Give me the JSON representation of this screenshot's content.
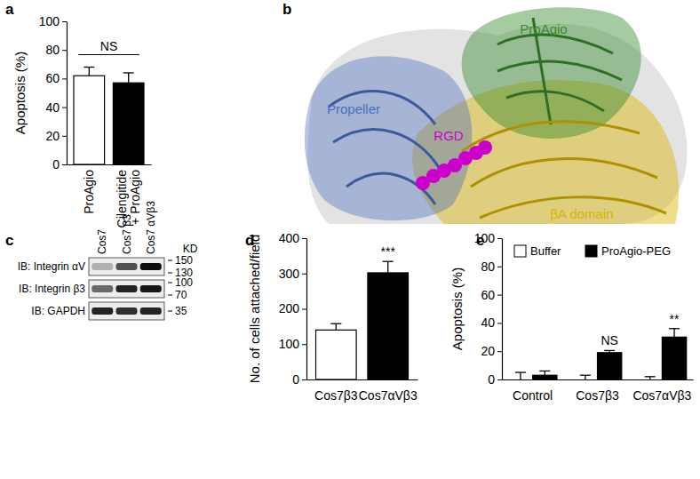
{
  "chart_data": [
    {
      "panel": "a",
      "type": "bar",
      "y_label": "Apoptosis (%)",
      "categories": [
        "ProAgio",
        "Cilengitide\n+ ProAgio"
      ],
      "values": [
        62,
        57
      ],
      "errors": [
        6,
        7
      ],
      "colors": [
        "#ffffff",
        "#000000"
      ],
      "ylim": [
        0,
        100
      ],
      "yticks": [
        0,
        20,
        40,
        60,
        80,
        100
      ],
      "annotations": [
        {
          "text": "NS",
          "categories": [
            0,
            1
          ]
        }
      ]
    },
    {
      "panel": "d",
      "type": "bar",
      "y_label": "No. of cells attached/field",
      "categories": [
        "Cos7β3",
        "Cos7αVβ3"
      ],
      "values": [
        140,
        302
      ],
      "errors": [
        18,
        32
      ],
      "colors": [
        "#ffffff",
        "#000000"
      ],
      "ylim": [
        0,
        400
      ],
      "yticks": [
        0,
        100,
        200,
        300,
        400
      ],
      "annotations": [
        {
          "text": "***",
          "category": 1
        }
      ]
    },
    {
      "panel": "e",
      "type": "bar",
      "y_label": "Apoptosis (%)",
      "categories": [
        "Control",
        "Cos7β3",
        "Cos7αVβ3"
      ],
      "series": [
        {
          "name": "Buffer",
          "color": "#ffffff",
          "values": [
            0,
            0,
            0
          ],
          "errors": [
            5,
            3,
            2
          ]
        },
        {
          "name": "ProAgio-PEG",
          "color": "#000000",
          "values": [
            3,
            19,
            30
          ],
          "errors": [
            3,
            1.5,
            6
          ]
        }
      ],
      "ylim": [
        0,
        100
      ],
      "yticks": [
        0,
        20,
        40,
        60,
        80,
        100
      ],
      "legend": "top-left",
      "annotations": [
        {
          "text": "NS",
          "category": 1,
          "series": 1
        },
        {
          "text": "**",
          "category": 2,
          "series": 1
        }
      ]
    }
  ],
  "structure": {
    "panel": "b",
    "labels": [
      {
        "text": "ProAgio",
        "color": "#3a8a2e"
      },
      {
        "text": "Propeller",
        "color": "#4a6fc0"
      },
      {
        "text": "RGD",
        "color": "#cc00cc"
      },
      {
        "text": "βA domain",
        "color": "#d8b400"
      }
    ]
  },
  "blot": {
    "panel": "c",
    "unit": "KD",
    "lanes": [
      "Cos7",
      "Cos7 β3",
      "Cos7 αVβ3"
    ],
    "rows": [
      {
        "label": "IB: Integrin αV",
        "intensity": [
          0.25,
          0.65,
          0.95
        ],
        "markers": [
          150,
          130
        ]
      },
      {
        "label": "IB: Integrin β3",
        "intensity": [
          0.55,
          0.85,
          0.9
        ],
        "markers": [
          100,
          70
        ]
      },
      {
        "label": "IB: GAPDH",
        "intensity": [
          0.85,
          0.8,
          0.85
        ],
        "markers": [
          35
        ]
      }
    ]
  }
}
